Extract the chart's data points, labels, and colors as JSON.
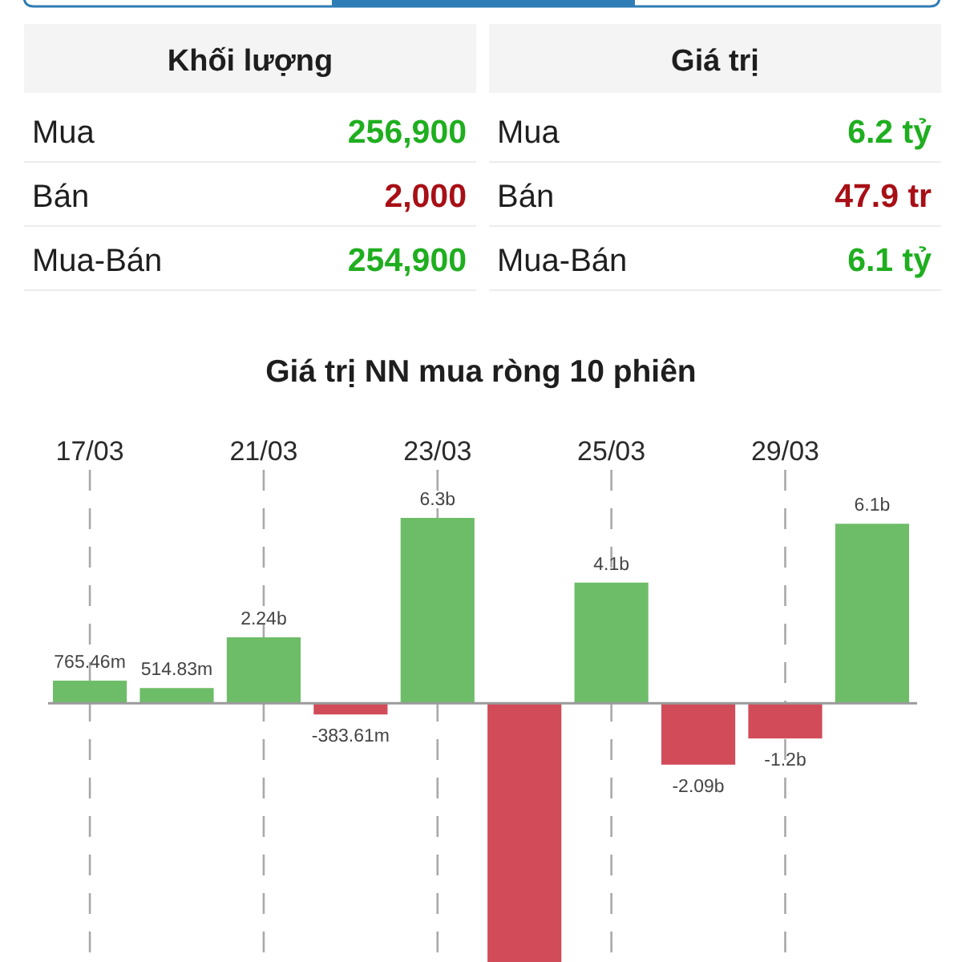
{
  "chart_data": [
    {
      "type": "other",
      "title": "Khối lượng",
      "categories": [
        "Mua",
        "Bán",
        "Mua-Bán"
      ],
      "value_labels": [
        "256,900",
        "2,000",
        "254,900"
      ],
      "colors": [
        "#1fae1f",
        "#a80f16",
        "#1fae1f"
      ]
    },
    {
      "type": "other",
      "title": "Giá trị",
      "categories": [
        "Mua",
        "Bán",
        "Mua-Bán"
      ],
      "value_labels": [
        "6.2 tỷ",
        "47.9 tr",
        "6.1 tỷ"
      ],
      "colors": [
        "#1fae1f",
        "#a80f16",
        "#1fae1f"
      ]
    },
    {
      "type": "bar",
      "title": "Giá trị NN mua ròng 10 phiên",
      "categories": [
        "17/03",
        null,
        "21/03",
        null,
        "23/03",
        null,
        "25/03",
        null,
        "29/03",
        null
      ],
      "values": [
        765460000,
        514830000,
        2240000000,
        -383610000,
        6300000000,
        -8800000000,
        4100000000,
        -2090000000,
        -1200000000,
        6100000000
      ],
      "colors": [
        "#6dbd68",
        "#6dbd68",
        "#6dbd68",
        "#d14b59",
        "#6dbd68",
        "#d14b59",
        "#6dbd68",
        "#d14b59",
        "#d14b59",
        "#6dbd68"
      ],
      "value_labels": [
        "765.46m",
        "514.83m",
        "2.24b",
        "-383.61m",
        "6.3b",
        null,
        "4.1b",
        "-2.09b",
        "-1.2b",
        "6.1b"
      ],
      "grid": "x"
    }
  ]
}
